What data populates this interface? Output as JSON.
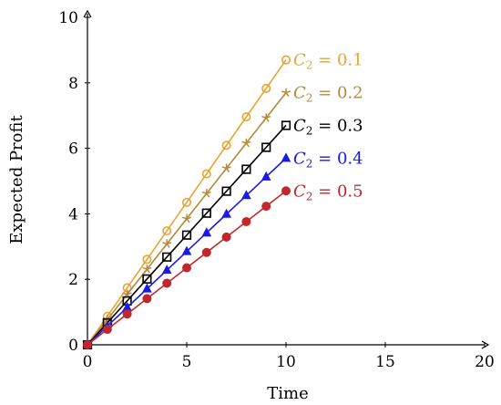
{
  "chart_data": {
    "type": "line",
    "xlabel": "Time",
    "ylabel": "Expected Profit",
    "xlim": [
      0,
      20
    ],
    "ylim": [
      0,
      10
    ],
    "xticks": [
      "0",
      "5",
      "10",
      "15",
      "20"
    ],
    "yticks": [
      "0",
      "2",
      "4",
      "6",
      "8",
      "10"
    ],
    "grid": false,
    "x": [
      0,
      1,
      2,
      3,
      4,
      5,
      6,
      7,
      8,
      9,
      10
    ],
    "series": [
      {
        "label": {
          "var": "C",
          "sub": "2",
          "rest": " = 0.1"
        },
        "color": "#e6a532",
        "marker": "circle",
        "values": [
          0,
          0.87,
          1.74,
          2.61,
          3.48,
          4.35,
          5.22,
          6.09,
          6.96,
          7.83,
          8.7
        ]
      },
      {
        "label": {
          "var": "C",
          "sub": "2",
          "rest": " = 0.2"
        },
        "color": "#b5893a",
        "marker": "star",
        "values": [
          0,
          0.77,
          1.54,
          2.31,
          3.08,
          3.85,
          4.62,
          5.39,
          6.16,
          6.93,
          7.7
        ]
      },
      {
        "label": {
          "var": "C",
          "sub": "2",
          "rest": " = 0.3"
        },
        "color": "#000000",
        "marker": "square",
        "values": [
          0,
          0.67,
          1.34,
          2.01,
          2.68,
          3.35,
          4.02,
          4.69,
          5.36,
          6.03,
          6.7
        ]
      },
      {
        "label": {
          "var": "C",
          "sub": "2",
          "rest": " = 0.4"
        },
        "color": "#1a1ae6",
        "marker": "triangle",
        "values": [
          0,
          0.57,
          1.14,
          1.71,
          2.28,
          2.85,
          3.42,
          3.99,
          4.56,
          5.13,
          5.7
        ]
      },
      {
        "label": {
          "var": "C",
          "sub": "2",
          "rest": " = 0.5"
        },
        "color": "#c0282d",
        "marker": "dot",
        "values": [
          0,
          0.47,
          0.94,
          1.41,
          1.88,
          2.35,
          2.82,
          3.29,
          3.76,
          4.23,
          4.7
        ]
      }
    ]
  }
}
